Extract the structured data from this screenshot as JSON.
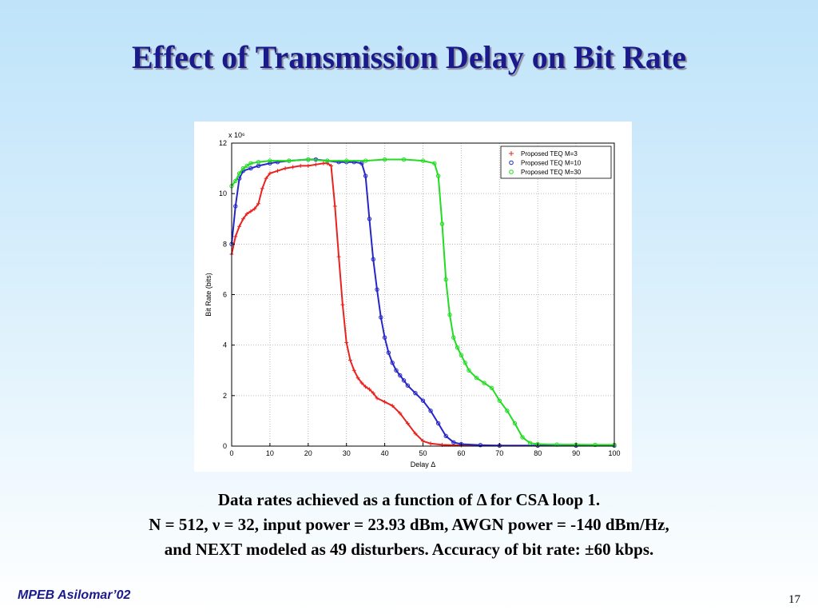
{
  "slide": {
    "title": "Effect of Transmission Delay on Bit Rate",
    "caption_line1": "Data rates achieved as a function of Δ for CSA loop 1.",
    "caption_line2": "N = 512, ν = 32, input power = 23.93 dBm, AWGN power  =  -140 dBm/Hz,",
    "caption_line3": "and NEXT modeled as 49 disturbers.  Accuracy of bit rate: ±60 kbps.",
    "footer": "MPEB Asilomar’02",
    "page_number": "17"
  },
  "chart_data": {
    "type": "line",
    "xlabel": "Delay Δ",
    "ylabel": "Bit Rate (bits)",
    "y_multiplier": "x 10⁶",
    "xlim": [
      0,
      100
    ],
    "ylim": [
      0,
      12
    ],
    "xticks": [
      "0",
      "10",
      "20",
      "30",
      "40",
      "50",
      "60",
      "70",
      "80",
      "90",
      "100"
    ],
    "yticks": [
      "0",
      "2",
      "4",
      "6",
      "8",
      "10",
      "12"
    ],
    "grid": true,
    "legend_position": "top-right",
    "series": [
      {
        "name": "Proposed TEQ M=3",
        "color": "#e8231f",
        "marker": "+",
        "points": [
          [
            0,
            7.6
          ],
          [
            1,
            8.3
          ],
          [
            2,
            8.7
          ],
          [
            3,
            9.0
          ],
          [
            4,
            9.2
          ],
          [
            5,
            9.3
          ],
          [
            6,
            9.4
          ],
          [
            7,
            9.6
          ],
          [
            8,
            10.2
          ],
          [
            9,
            10.6
          ],
          [
            10,
            10.8
          ],
          [
            12,
            10.9
          ],
          [
            14,
            11.0
          ],
          [
            16,
            11.05
          ],
          [
            18,
            11.1
          ],
          [
            20,
            11.1
          ],
          [
            22,
            11.15
          ],
          [
            24,
            11.2
          ],
          [
            25,
            11.2
          ],
          [
            26,
            11.1
          ],
          [
            27,
            9.5
          ],
          [
            28,
            7.5
          ],
          [
            29,
            5.6
          ],
          [
            30,
            4.1
          ],
          [
            31,
            3.4
          ],
          [
            32,
            3.0
          ],
          [
            33,
            2.7
          ],
          [
            34,
            2.5
          ],
          [
            35,
            2.35
          ],
          [
            36,
            2.25
          ],
          [
            37,
            2.1
          ],
          [
            38,
            1.9
          ],
          [
            40,
            1.75
          ],
          [
            42,
            1.6
          ],
          [
            44,
            1.3
          ],
          [
            46,
            0.9
          ],
          [
            48,
            0.5
          ],
          [
            50,
            0.2
          ],
          [
            52,
            0.1
          ],
          [
            55,
            0.05
          ],
          [
            60,
            0.03
          ],
          [
            70,
            0.02
          ],
          [
            80,
            0.02
          ],
          [
            90,
            0.02
          ],
          [
            100,
            0.02
          ]
        ]
      },
      {
        "name": "Proposed TEQ M=10",
        "color": "#2626c8",
        "marker": "o",
        "points": [
          [
            0,
            8.0
          ],
          [
            1,
            9.5
          ],
          [
            2,
            10.6
          ],
          [
            3,
            10.9
          ],
          [
            5,
            11.0
          ],
          [
            7,
            11.1
          ],
          [
            10,
            11.2
          ],
          [
            12,
            11.25
          ],
          [
            15,
            11.3
          ],
          [
            20,
            11.35
          ],
          [
            22,
            11.35
          ],
          [
            25,
            11.3
          ],
          [
            28,
            11.25
          ],
          [
            30,
            11.25
          ],
          [
            32,
            11.25
          ],
          [
            34,
            11.2
          ],
          [
            35,
            10.7
          ],
          [
            36,
            9.0
          ],
          [
            37,
            7.4
          ],
          [
            38,
            6.2
          ],
          [
            39,
            5.1
          ],
          [
            40,
            4.3
          ],
          [
            41,
            3.7
          ],
          [
            42,
            3.3
          ],
          [
            43,
            3.0
          ],
          [
            44,
            2.8
          ],
          [
            45,
            2.6
          ],
          [
            46,
            2.4
          ],
          [
            48,
            2.1
          ],
          [
            50,
            1.8
          ],
          [
            52,
            1.4
          ],
          [
            54,
            0.9
          ],
          [
            56,
            0.4
          ],
          [
            58,
            0.15
          ],
          [
            60,
            0.08
          ],
          [
            65,
            0.04
          ],
          [
            70,
            0.02
          ],
          [
            80,
            0.02
          ],
          [
            90,
            0.02
          ],
          [
            100,
            0.02
          ]
        ]
      },
      {
        "name": "Proposed TEQ M=30",
        "color": "#22dc22",
        "marker": "o",
        "points": [
          [
            0,
            10.3
          ],
          [
            1,
            10.5
          ],
          [
            2,
            10.8
          ],
          [
            3,
            11.0
          ],
          [
            4,
            11.1
          ],
          [
            5,
            11.2
          ],
          [
            7,
            11.25
          ],
          [
            10,
            11.3
          ],
          [
            15,
            11.3
          ],
          [
            20,
            11.35
          ],
          [
            25,
            11.3
          ],
          [
            30,
            11.3
          ],
          [
            35,
            11.3
          ],
          [
            40,
            11.35
          ],
          [
            45,
            11.35
          ],
          [
            50,
            11.3
          ],
          [
            53,
            11.2
          ],
          [
            54,
            10.7
          ],
          [
            55,
            8.8
          ],
          [
            56,
            6.6
          ],
          [
            57,
            5.2
          ],
          [
            58,
            4.3
          ],
          [
            59,
            3.9
          ],
          [
            60,
            3.6
          ],
          [
            61,
            3.3
          ],
          [
            62,
            3.0
          ],
          [
            64,
            2.7
          ],
          [
            66,
            2.5
          ],
          [
            68,
            2.3
          ],
          [
            70,
            1.8
          ],
          [
            72,
            1.4
          ],
          [
            74,
            0.9
          ],
          [
            76,
            0.35
          ],
          [
            78,
            0.12
          ],
          [
            80,
            0.08
          ],
          [
            85,
            0.06
          ],
          [
            90,
            0.06
          ],
          [
            95,
            0.05
          ],
          [
            100,
            0.05
          ]
        ]
      }
    ]
  }
}
